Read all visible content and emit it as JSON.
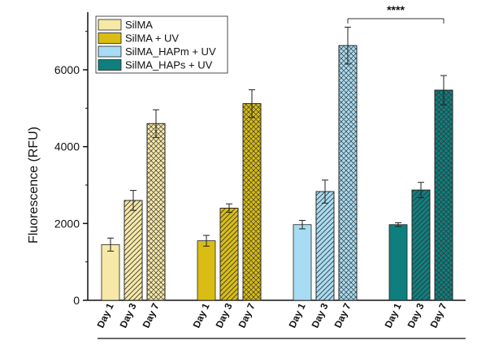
{
  "chart_data": {
    "type": "bar",
    "ylabel": "Fluorescence (RFU)",
    "ylim": [
      0,
      7500
    ],
    "yticks": [
      0,
      2000,
      4000,
      6000
    ],
    "grid": false,
    "legend_position": "top-left",
    "categories": [
      "Day 1",
      "Day 3",
      "Day 7"
    ],
    "patterns": [
      "solid",
      "diagonal",
      "crosshatch"
    ],
    "series": [
      {
        "name": "SilMA",
        "color": "#f6e8a6",
        "values": [
          1450,
          2600,
          4600
        ],
        "errors": [
          170,
          260,
          360
        ]
      },
      {
        "name": "SilMA + UV",
        "color": "#d9bd14",
        "values": [
          1550,
          2400,
          5120
        ],
        "errors": [
          140,
          110,
          360
        ]
      },
      {
        "name": "SilMA_HAPm + UV",
        "color": "#a7dcf2",
        "values": [
          1970,
          2830,
          6630
        ],
        "errors": [
          110,
          300,
          480
        ]
      },
      {
        "name": "SilMA_HAPs + UV",
        "color": "#0f7f7e",
        "values": [
          1970,
          2870,
          5470
        ],
        "errors": [
          50,
          200,
          380
        ]
      }
    ],
    "annotations": [
      {
        "text": "****",
        "from_group": 2,
        "to_group": 3
      }
    ]
  }
}
